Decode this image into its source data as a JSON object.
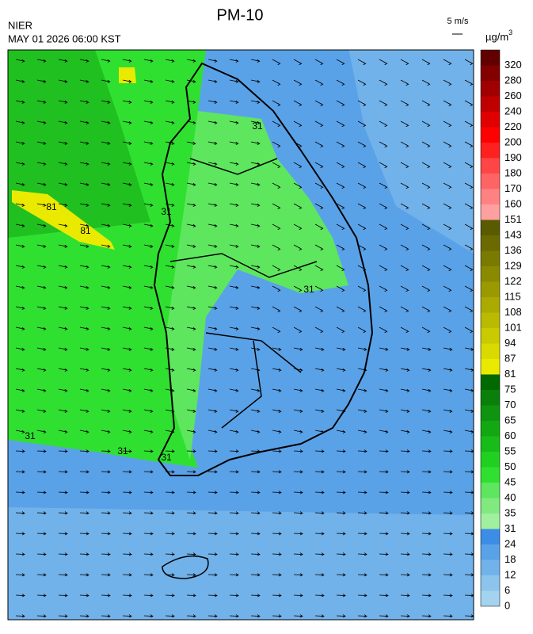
{
  "header": {
    "title": "PM-10",
    "agency": "NIER",
    "timestamp": "MAY 01 2026 06:00 KST",
    "wind_scale": "5 m/s",
    "unit": "µg/m",
    "unit_sup": "3"
  },
  "colorbar": {
    "levels": [
      {
        "label": "0",
        "color": "#a3d3ef"
      },
      {
        "label": "6",
        "color": "#8cc4ec"
      },
      {
        "label": "12",
        "color": "#72b2ea"
      },
      {
        "label": "18",
        "color": "#5aa2e8"
      },
      {
        "label": "24",
        "color": "#3c8de6"
      },
      {
        "label": "31",
        "color": "#a0f0a0"
      },
      {
        "label": "35",
        "color": "#80ea80"
      },
      {
        "label": "40",
        "color": "#5ee65e"
      },
      {
        "label": "45",
        "color": "#30e030"
      },
      {
        "label": "50",
        "color": "#20d020"
      },
      {
        "label": "55",
        "color": "#18bc18"
      },
      {
        "label": "60",
        "color": "#12a812"
      },
      {
        "label": "65",
        "color": "#0e940e"
      },
      {
        "label": "70",
        "color": "#0a800a"
      },
      {
        "label": "75",
        "color": "#006a00"
      },
      {
        "label": "81",
        "color": "#eaea00"
      },
      {
        "label": "87",
        "color": "#dada00"
      },
      {
        "label": "94",
        "color": "#caca00"
      },
      {
        "label": "101",
        "color": "#baba00"
      },
      {
        "label": "108",
        "color": "#aaaa00"
      },
      {
        "label": "115",
        "color": "#9a9a00"
      },
      {
        "label": "122",
        "color": "#8a8a00"
      },
      {
        "label": "129",
        "color": "#7a7a00"
      },
      {
        "label": "136",
        "color": "#6a6a00"
      },
      {
        "label": "143",
        "color": "#5a5a00"
      },
      {
        "label": "151",
        "color": "#ffa0a0"
      },
      {
        "label": "160",
        "color": "#ff8282"
      },
      {
        "label": "170",
        "color": "#ff6464"
      },
      {
        "label": "180",
        "color": "#ff4646"
      },
      {
        "label": "190",
        "color": "#ff2020"
      },
      {
        "label": "200",
        "color": "#ff0000"
      },
      {
        "label": "220",
        "color": "#e00000"
      },
      {
        "label": "240",
        "color": "#c00000"
      },
      {
        "label": "260",
        "color": "#a00000"
      },
      {
        "label": "280",
        "color": "#820000"
      },
      {
        "label": "320",
        "color": "#620000"
      }
    ]
  },
  "contour_labels": [
    "31",
    "31",
    "31",
    "31",
    "31",
    "31",
    "81",
    "81"
  ]
}
